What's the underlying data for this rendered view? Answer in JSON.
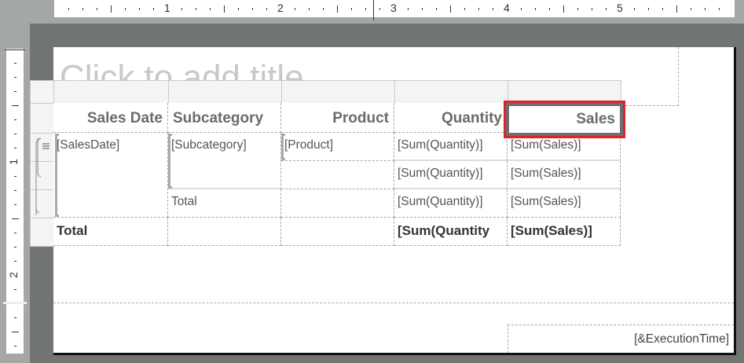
{
  "ruler": {
    "horizontal_labels": [
      "1",
      "2",
      "3",
      "4",
      "5"
    ],
    "vertical_labels": [
      "1",
      "2"
    ]
  },
  "report": {
    "title_placeholder": "Click to add title",
    "headers": [
      "Sales Date",
      "Subcategory",
      "Product",
      "Quantity",
      "Sales"
    ],
    "selected_header": "Sales",
    "rows": [
      [
        "[SalesDate]",
        "[Subcategory]",
        "[Product]",
        "[Sum(Quantity)]",
        "[Sum(Sales)]"
      ],
      [
        "",
        "",
        "",
        "[Sum(Quantity)]",
        "[Sum(Sales)]"
      ],
      [
        "",
        "Total",
        "",
        "[Sum(Quantity)]",
        "[Sum(Sales)]"
      ],
      [
        "Total",
        "",
        "",
        "[Sum(Quantity",
        "[Sum(Sales)]"
      ]
    ],
    "footer_expression": "[&ExecutionTime]",
    "group_icon": "row-group-lines-icon"
  },
  "colors": {
    "selection": "#e0202a",
    "workspace": "#727672"
  }
}
